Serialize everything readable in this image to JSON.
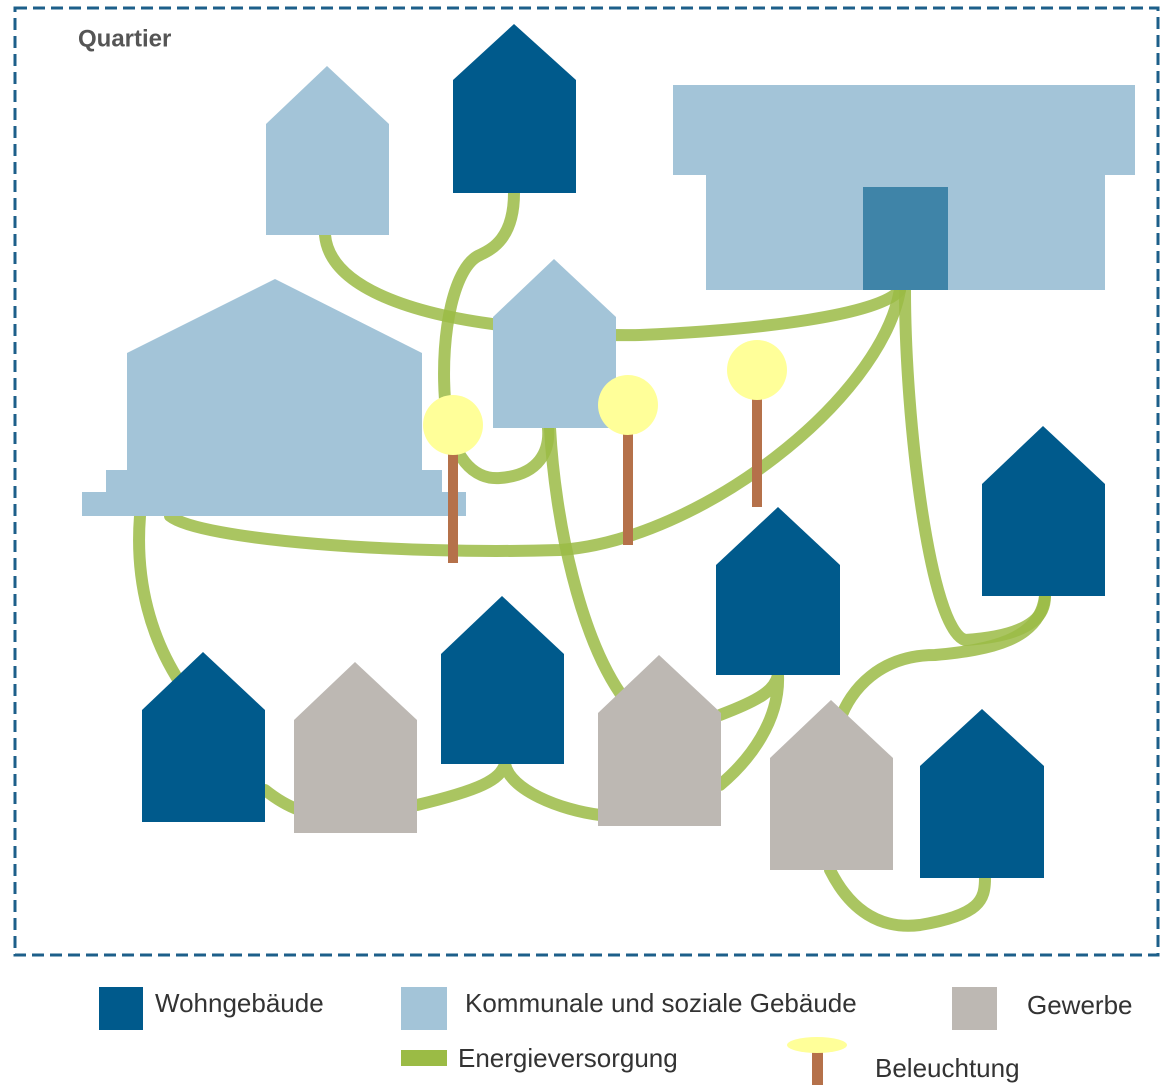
{
  "title": "Quartier",
  "legend": {
    "items": [
      "Wohngebäude",
      "Kommunale und soziale Gebäude",
      "Gewerbe",
      "Energieversorgung",
      "Beleuchtung"
    ]
  }
}
